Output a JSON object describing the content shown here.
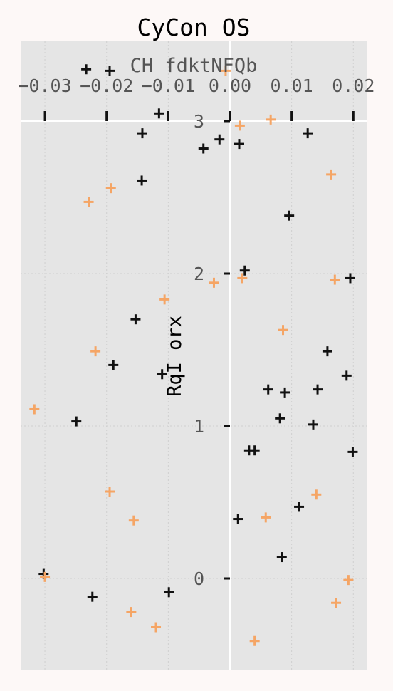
{
  "chart_data": {
    "type": "scatter",
    "title": "CyCon OS",
    "xlabel": "CH  fdktNFQb",
    "ylabel": "RqI orx",
    "x_axis_position": "top",
    "xlim": [
      -0.0342,
      0.0222
    ],
    "ylim": [
      -0.6,
      3.0
    ],
    "x_ticks": [
      -0.03,
      -0.02,
      -0.01,
      0.0,
      0.01,
      0.02
    ],
    "x_tick_labels": [
      "−0.03",
      "−0.02",
      "−0.01",
      "0.00",
      "0.01",
      "0.02"
    ],
    "y_ticks": [
      0,
      1,
      2,
      3
    ],
    "y_tick_labels": [
      "0",
      "1",
      "2",
      "3"
    ],
    "grid": true,
    "colors": {
      "background": "#fdf8f7",
      "plot_background": "#e5e5e5",
      "grid": "#cfcfcf",
      "axis_line": "#ffffff",
      "text": "#555555",
      "title": "#000000"
    },
    "series": [
      {
        "color": "#111111",
        "points": [
          {
            "x": -0.0233,
            "y": 3.34
          },
          {
            "x": -0.0195,
            "y": 3.33
          },
          {
            "x": -0.0115,
            "y": 3.05
          },
          {
            "x": -0.0142,
            "y": 2.92
          },
          {
            "x": -0.0043,
            "y": 2.82
          },
          {
            "x": -0.0017,
            "y": 2.88
          },
          {
            "x": 0.0015,
            "y": 2.85
          },
          {
            "x": 0.0126,
            "y": 2.92
          },
          {
            "x": -0.0143,
            "y": 2.61
          },
          {
            "x": 0.0096,
            "y": 2.38
          },
          {
            "x": 0.0024,
            "y": 2.02
          },
          {
            "x": 0.0195,
            "y": 1.97
          },
          {
            "x": -0.0153,
            "y": 1.7
          },
          {
            "x": 0.0158,
            "y": 1.49
          },
          {
            "x": -0.0189,
            "y": 1.4
          },
          {
            "x": -0.011,
            "y": 1.34
          },
          {
            "x": 0.0189,
            "y": 1.33
          },
          {
            "x": 0.0062,
            "y": 1.24
          },
          {
            "x": 0.0089,
            "y": 1.22
          },
          {
            "x": 0.0142,
            "y": 1.24
          },
          {
            "x": -0.0249,
            "y": 1.03
          },
          {
            "x": 0.0081,
            "y": 1.05
          },
          {
            "x": 0.0135,
            "y": 1.01
          },
          {
            "x": 0.0031,
            "y": 0.84
          },
          {
            "x": 0.004,
            "y": 0.84
          },
          {
            "x": 0.0199,
            "y": 0.83
          },
          {
            "x": 0.0112,
            "y": 0.47
          },
          {
            "x": 0.0013,
            "y": 0.39
          },
          {
            "x": 0.0084,
            "y": 0.14
          },
          {
            "x": -0.0302,
            "y": 0.03
          },
          {
            "x": -0.0223,
            "y": -0.12
          },
          {
            "x": -0.0099,
            "y": -0.09
          }
        ]
      },
      {
        "color": "#f5a565",
        "points": [
          {
            "x": -0.0007,
            "y": 3.33
          },
          {
            "x": 0.0066,
            "y": 3.01
          },
          {
            "x": 0.0016,
            "y": 2.97
          },
          {
            "x": 0.0164,
            "y": 2.65
          },
          {
            "x": -0.0193,
            "y": 2.56
          },
          {
            "x": -0.0229,
            "y": 2.47
          },
          {
            "x": -0.0026,
            "y": 1.94
          },
          {
            "x": 0.002,
            "y": 1.97
          },
          {
            "x": 0.017,
            "y": 1.96
          },
          {
            "x": -0.0106,
            "y": 1.83
          },
          {
            "x": 0.0086,
            "y": 1.63
          },
          {
            "x": -0.0218,
            "y": 1.49
          },
          {
            "x": -0.0317,
            "y": 1.11
          },
          {
            "x": -0.0195,
            "y": 0.57
          },
          {
            "x": 0.014,
            "y": 0.55
          },
          {
            "x": -0.0156,
            "y": 0.38
          },
          {
            "x": 0.0058,
            "y": 0.4
          },
          {
            "x": -0.03,
            "y": 0.01
          },
          {
            "x": 0.0192,
            "y": -0.01
          },
          {
            "x": 0.0172,
            "y": -0.16
          },
          {
            "x": -0.016,
            "y": -0.22
          },
          {
            "x": -0.012,
            "y": -0.32
          },
          {
            "x": 0.004,
            "y": -0.41
          }
        ]
      }
    ]
  }
}
